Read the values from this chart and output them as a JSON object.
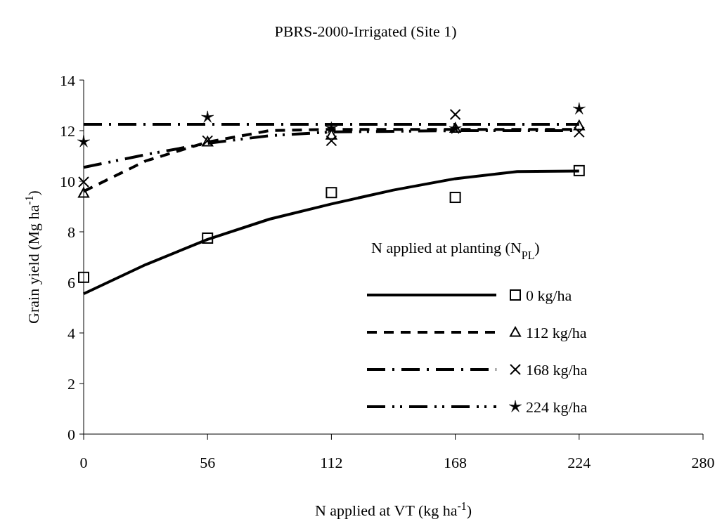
{
  "chart_data": {
    "type": "scatter",
    "title": "PBRS-2000-Irrigated (Site 1)",
    "xlabel": "N applied at VT (kg ha$^{-1}$)",
    "ylabel": "Grain yield (Mg ha$^{-1}$)",
    "legend_title": "N applied at planting (N$_{PL}$)",
    "legend": "bottom right",
    "grid": false,
    "x": [
      0,
      56,
      112,
      168,
      224
    ],
    "xlim": [
      0,
      280
    ],
    "xticks": [
      0,
      56,
      112,
      168,
      224,
      280
    ],
    "ylim": [
      0,
      14
    ],
    "yticks": [
      0,
      2,
      4,
      6,
      8,
      10,
      12,
      14
    ],
    "series": [
      {
        "name": "0 kg/ha",
        "marker": "square",
        "color": "#000000",
        "values": [
          6.2,
          7.75,
          9.55,
          9.36,
          10.42
        ]
      },
      {
        "type": "line",
        "line_style": "solid",
        "color": "#000000",
        "x": [
          0,
          28,
          56,
          84,
          112,
          140,
          168,
          196,
          224
        ],
        "values": [
          5.55,
          6.7,
          7.7,
          8.5,
          9.1,
          9.65,
          10.1,
          10.38,
          10.4
        ]
      },
      {
        "name": "112 kg/ha",
        "marker": "triangle",
        "color": "#000000",
        "values": [
          9.53,
          11.56,
          11.83,
          12.1,
          12.2
        ]
      },
      {
        "type": "line",
        "line_style": "dashed",
        "color": "#000000",
        "x": [
          0,
          28,
          56,
          84,
          112,
          168,
          224
        ],
        "values": [
          9.6,
          10.8,
          11.55,
          12.0,
          12.05,
          12.05,
          12.05
        ]
      },
      {
        "name": "168 kg/ha",
        "marker": "cross",
        "color": "#000000",
        "values": [
          9.97,
          11.6,
          11.6,
          12.64,
          11.94
        ]
      },
      {
        "type": "line",
        "line_style": "dashdot",
        "color": "#000000",
        "x": [
          0,
          224
        ],
        "values": [
          12.25,
          12.25
        ]
      },
      {
        "name": "224 kg/ha",
        "marker": "star",
        "color": "#000000",
        "values": [
          11.56,
          12.53,
          12.1,
          12.08,
          12.86
        ]
      },
      {
        "type": "line",
        "line_style": "dashdotdot",
        "color": "#000000",
        "x": [
          0,
          28,
          56,
          84,
          112,
          168,
          224
        ],
        "values": [
          10.55,
          11.05,
          11.5,
          11.8,
          11.95,
          12.0,
          12.0
        ]
      }
    ]
  }
}
